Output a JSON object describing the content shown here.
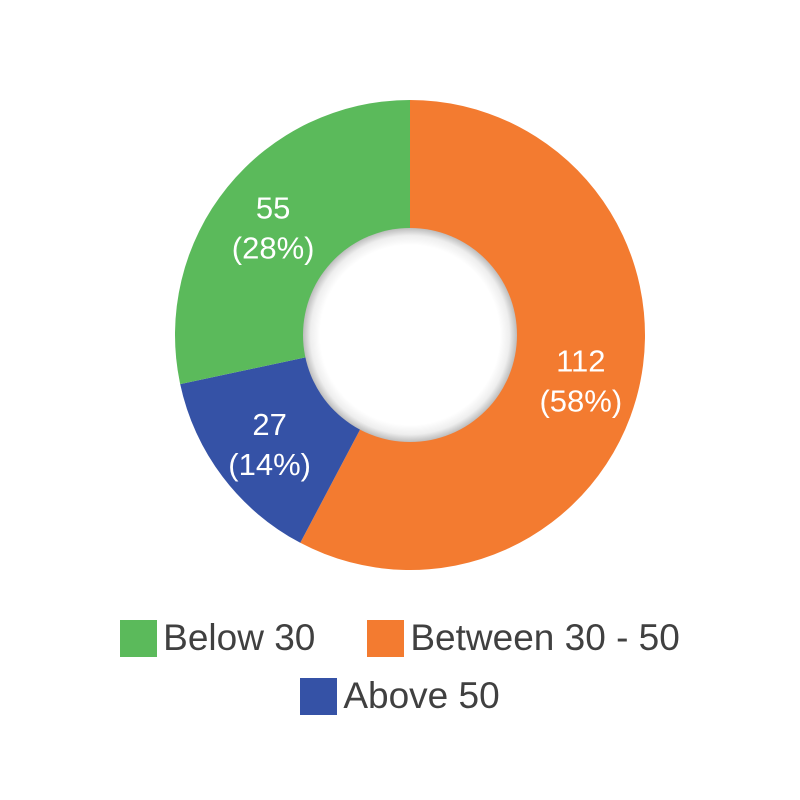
{
  "chart_data": {
    "type": "pie",
    "variant": "donut",
    "slices": [
      {
        "name": "Between 30 - 50",
        "value": 112,
        "percent_label": "(58%)",
        "value_label": "112",
        "color": "#F37B30"
      },
      {
        "name": "Above 50",
        "value": 27,
        "percent_label": "(14%)",
        "value_label": "27",
        "color": "#3552A6"
      },
      {
        "name": "Below 30",
        "value": 55,
        "percent_label": "(28%)",
        "value_label": "55",
        "color": "#5BBA5B"
      }
    ],
    "legend": {
      "placement": "bottom",
      "entries": [
        {
          "label": "Below 30",
          "color": "#5BBA5B"
        },
        {
          "label": "Between 30 - 50",
          "color": "#F37B30"
        },
        {
          "label": "Above 50",
          "color": "#3552A6"
        }
      ]
    }
  }
}
